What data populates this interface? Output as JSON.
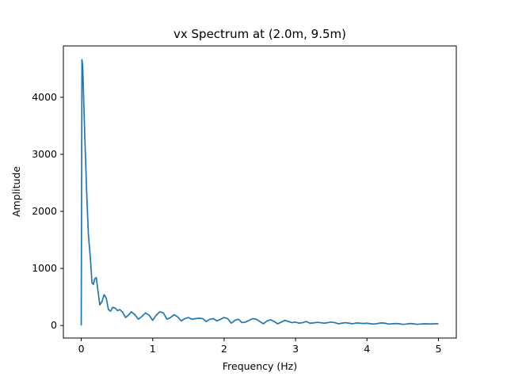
{
  "chart_data": {
    "type": "line",
    "title": "vx Spectrum at (2.0m, 9.5m)",
    "xlabel": "Frequency (Hz)",
    "ylabel": "Amplitude",
    "xlim": [
      -0.25,
      5.25
    ],
    "ylim": [
      -220,
      4900
    ],
    "xticks": [
      0,
      1,
      2,
      3,
      4,
      5
    ],
    "xtick_labels": [
      "0",
      "1",
      "2",
      "3",
      "4",
      "5"
    ],
    "yticks": [
      0,
      1000,
      2000,
      3000,
      4000
    ],
    "ytick_labels": [
      "0",
      "1000",
      "2000",
      "3000",
      "4000"
    ],
    "grid": false,
    "legend": "none",
    "series": [
      {
        "color": "#1f77b4",
        "x": [
          0,
          0.01,
          0.02,
          0.03,
          0.05,
          0.08,
          0.1,
          0.13,
          0.15,
          0.17,
          0.19,
          0.21,
          0.23,
          0.26,
          0.29,
          0.32,
          0.35,
          0.38,
          0.41,
          0.44,
          0.48,
          0.51,
          0.54,
          0.58,
          0.62,
          0.66,
          0.7,
          0.75,
          0.8,
          0.85,
          0.9,
          0.95,
          1.0,
          1.05,
          1.1,
          1.15,
          1.2,
          1.25,
          1.3,
          1.35,
          1.4,
          1.45,
          1.5,
          1.55,
          1.6,
          1.65,
          1.7,
          1.75,
          1.8,
          1.85,
          1.9,
          1.95,
          2.0,
          2.05,
          2.1,
          2.15,
          2.2,
          2.25,
          2.3,
          2.35,
          2.4,
          2.45,
          2.5,
          2.55,
          2.6,
          2.65,
          2.7,
          2.75,
          2.8,
          2.85,
          2.9,
          2.95,
          3.0,
          3.05,
          3.1,
          3.15,
          3.2,
          3.25,
          3.3,
          3.35,
          3.4,
          3.45,
          3.5,
          3.55,
          3.6,
          3.65,
          3.7,
          3.75,
          3.8,
          3.85,
          3.9,
          3.95,
          4.0,
          4.05,
          4.1,
          4.15,
          4.2,
          4.25,
          4.3,
          4.35,
          4.4,
          4.45,
          4.5,
          4.55,
          4.6,
          4.65,
          4.7,
          4.75,
          4.8,
          4.85,
          4.9,
          4.95,
          5.0
        ],
        "y": [
          0,
          4660,
          4550,
          4150,
          3300,
          2200,
          1600,
          1150,
          750,
          720,
          820,
          840,
          650,
          360,
          420,
          540,
          480,
          280,
          250,
          320,
          300,
          260,
          280,
          230,
          140,
          180,
          240,
          190,
          110,
          160,
          220,
          180,
          90,
          180,
          240,
          220,
          110,
          140,
          190,
          150,
          80,
          120,
          140,
          110,
          120,
          130,
          120,
          70,
          110,
          120,
          80,
          110,
          140,
          120,
          40,
          90,
          110,
          50,
          60,
          90,
          120,
          110,
          70,
          30,
          80,
          100,
          70,
          30,
          60,
          90,
          70,
          50,
          60,
          40,
          50,
          70,
          40,
          45,
          55,
          50,
          40,
          50,
          60,
          50,
          30,
          40,
          50,
          40,
          30,
          45,
          40,
          35,
          40,
          30,
          25,
          35,
          45,
          40,
          25,
          30,
          35,
          30,
          20,
          25,
          35,
          30,
          20,
          25,
          30,
          28,
          26,
          30,
          30
        ]
      }
    ]
  }
}
